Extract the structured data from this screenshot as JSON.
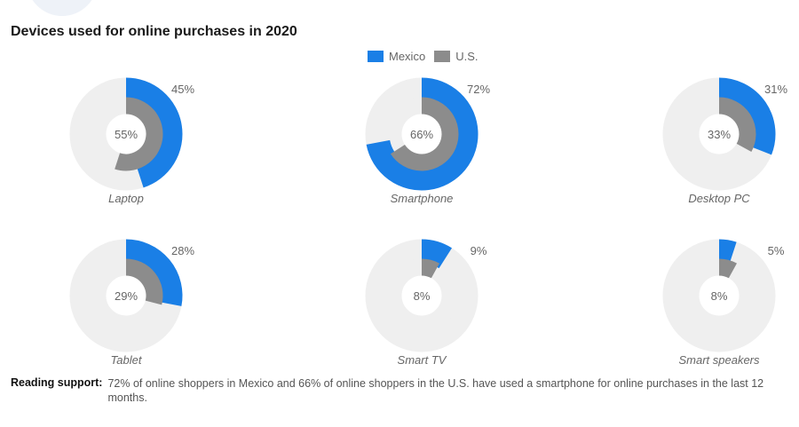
{
  "chart_data": {
    "type": "donut",
    "title": "Devices used for online purchases in 2020",
    "legend_position": "top-center",
    "series": [
      {
        "name": "Mexico",
        "color": "#1a7fe6"
      },
      {
        "name": "U.S.",
        "color": "#8c8c8c"
      }
    ],
    "track_color": "#efefef",
    "charts": [
      {
        "category": "Laptop",
        "mexico": 45,
        "us": 55,
        "mexico_label": "45%",
        "us_label": "55%"
      },
      {
        "category": "Smartphone",
        "mexico": 72,
        "us": 66,
        "mexico_label": "72%",
        "us_label": "66%"
      },
      {
        "category": "Desktop PC",
        "mexico": 31,
        "us": 33,
        "mexico_label": "31%",
        "us_label": "33%"
      },
      {
        "category": "Tablet",
        "mexico": 28,
        "us": 29,
        "mexico_label": "28%",
        "us_label": "29%"
      },
      {
        "category": "Smart TV",
        "mexico": 9,
        "us": 8,
        "mexico_label": "9%",
        "us_label": "8%"
      },
      {
        "category": "Smart speakers",
        "mexico": 5,
        "us": 8,
        "mexico_label": "5%",
        "us_label": "8%"
      }
    ]
  },
  "reading_support": {
    "label": "Reading support:",
    "text": "72% of online shoppers in Mexico and 66% of online shoppers in the U.S. have used a smartphone for online purchases in the last 12 months."
  }
}
